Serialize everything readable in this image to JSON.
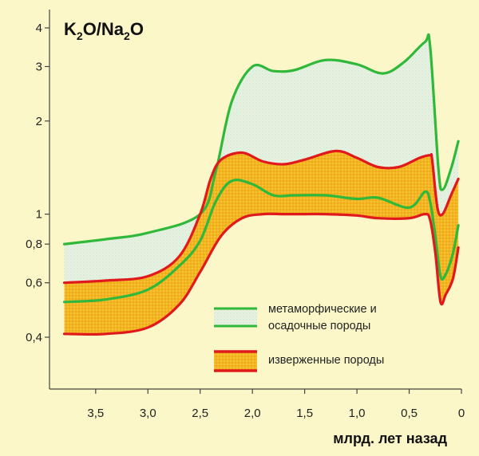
{
  "chart_data": {
    "type": "area",
    "title_parts": {
      "k": "K",
      "sub1": "2",
      "mid": "O/Na",
      "sub2": "2",
      "end": "O"
    },
    "xlabel": "млрд. лет назад",
    "ylabel": "",
    "x_reversed": true,
    "xlim": [
      3.85,
      0
    ],
    "x_ticks": [
      {
        "value": 3.5,
        "label": "3,5"
      },
      {
        "value": 3.0,
        "label": "3,0"
      },
      {
        "value": 2.5,
        "label": "2,5"
      },
      {
        "value": 2.0,
        "label": "2,0"
      },
      {
        "value": 1.5,
        "label": "1,5"
      },
      {
        "value": 1.0,
        "label": "1,0"
      },
      {
        "value": 0.5,
        "label": "0,5"
      },
      {
        "value": 0.0,
        "label": "0"
      }
    ],
    "y_ticks": [
      {
        "value": 0.4,
        "label": "0,4"
      },
      {
        "value": 0.6,
        "label": "0,6"
      },
      {
        "value": 0.8,
        "label": "0,8"
      },
      {
        "value": 1,
        "label": "1"
      },
      {
        "value": 2,
        "label": "2"
      },
      {
        "value": 3,
        "label": "3"
      },
      {
        "value": 4,
        "label": "4"
      }
    ],
    "y_scale": "log",
    "grid": false,
    "bands": [
      {
        "name": "метаморфические и осадочные породы",
        "line_color": "#2fb83a",
        "fill_color": "#e4f0e4",
        "upper": {
          "x": [
            3.8,
            3.4,
            3.0,
            2.5,
            2.35,
            2.2,
            2.0,
            1.8,
            1.6,
            1.3,
            1.0,
            0.75,
            0.55,
            0.35,
            0.3,
            0.22,
            0.18,
            0.1,
            0.03
          ],
          "y": [
            0.8,
            0.83,
            0.87,
            1.0,
            1.38,
            2.3,
            3.0,
            2.9,
            2.92,
            3.15,
            3.05,
            2.85,
            3.1,
            3.6,
            3.5,
            1.4,
            1.2,
            1.4,
            1.72
          ]
        },
        "lower": {
          "x": [
            3.8,
            3.4,
            3.0,
            2.7,
            2.5,
            2.35,
            2.2,
            2.0,
            1.8,
            1.6,
            1.3,
            1.0,
            0.8,
            0.5,
            0.35,
            0.3,
            0.25,
            0.2,
            0.15,
            0.08,
            0.03
          ],
          "y": [
            0.52,
            0.53,
            0.57,
            0.68,
            0.82,
            1.1,
            1.28,
            1.25,
            1.15,
            1.15,
            1.15,
            1.12,
            1.13,
            1.05,
            1.18,
            1.1,
            0.85,
            0.63,
            0.64,
            0.75,
            0.92
          ]
        }
      },
      {
        "name": "изверженные породы",
        "line_color": "#e0191d",
        "fill_color": "#f2b41c",
        "upper": {
          "x": [
            3.8,
            3.4,
            3.0,
            2.7,
            2.5,
            2.4,
            2.3,
            2.1,
            1.9,
            1.7,
            1.5,
            1.2,
            1.0,
            0.8,
            0.6,
            0.4,
            0.3,
            0.28,
            0.23,
            0.18,
            0.1,
            0.03
          ],
          "y": [
            0.6,
            0.61,
            0.63,
            0.73,
            1.0,
            1.3,
            1.5,
            1.58,
            1.48,
            1.45,
            1.5,
            1.6,
            1.52,
            1.42,
            1.42,
            1.52,
            1.55,
            1.5,
            1.05,
            1.0,
            1.15,
            1.3
          ]
        },
        "lower": {
          "x": [
            3.8,
            3.4,
            3.0,
            2.7,
            2.5,
            2.3,
            2.1,
            1.9,
            1.7,
            1.5,
            1.3,
            1.0,
            0.8,
            0.5,
            0.35,
            0.3,
            0.25,
            0.2,
            0.15,
            0.08,
            0.03
          ],
          "y": [
            0.41,
            0.41,
            0.43,
            0.51,
            0.65,
            0.85,
            0.97,
            1.0,
            1.0,
            1.0,
            1.0,
            0.99,
            0.97,
            0.97,
            1.0,
            0.96,
            0.75,
            0.52,
            0.55,
            0.62,
            0.78
          ]
        }
      }
    ],
    "legend": [
      {
        "label_lines": [
          "метаморфические и",
          "осадочные породы"
        ],
        "line_color": "#2fb83a",
        "fill_color": "#e4f0e4"
      },
      {
        "label_lines": [
          "изверженные породы"
        ],
        "line_color": "#e0191d",
        "fill_color": "#f2b41c"
      }
    ]
  }
}
